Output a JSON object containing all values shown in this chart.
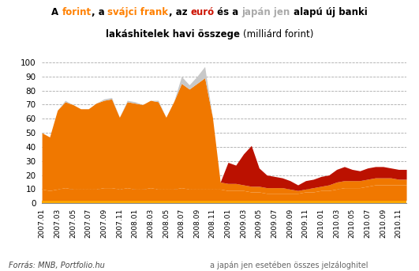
{
  "color_yellow": "#FFAA00",
  "color_orange": "#F07800",
  "color_grey": "#C8C8C8",
  "color_red": "#BB1100",
  "bg_color": "#FFFFFF",
  "fontsize_title": 8.5,
  "fontsize_tick": 7.5,
  "fontsize_footer": 7.0,
  "footer_left": "Forrás: MNB, Portfolio.hu",
  "footer_right": "a japán jen esetében összes jelzáloghitel",
  "ylim": [
    0,
    100
  ],
  "yticks": [
    0,
    10,
    20,
    30,
    40,
    50,
    60,
    70,
    80,
    90,
    100
  ],
  "line1": [
    [
      "A ",
      "#000000",
      true
    ],
    [
      "forint",
      "#FF8000",
      true
    ],
    [
      ", a ",
      "#000000",
      true
    ],
    [
      "svájci frank",
      "#FF8000",
      true
    ],
    [
      ", az ",
      "#000000",
      true
    ],
    [
      "euró",
      "#CC1100",
      true
    ],
    [
      " és a ",
      "#000000",
      true
    ],
    [
      "japán jen",
      "#AAAAAA",
      true
    ],
    [
      " alapú új banki",
      "#000000",
      true
    ]
  ],
  "line2": [
    [
      "lakáshitelek havi összege ",
      "#000000",
      true
    ],
    [
      "(milliárd forint)",
      "#000000",
      false
    ]
  ],
  "forint": [
    2,
    2,
    2,
    2,
    2,
    2,
    2,
    2,
    2,
    2,
    2,
    2,
    2,
    2,
    2,
    2,
    2,
    2,
    2,
    2,
    2,
    2,
    2,
    2,
    2,
    2,
    2,
    2,
    2,
    2,
    2,
    2,
    2,
    2,
    2,
    2,
    2,
    2,
    2,
    2,
    2,
    2,
    2,
    2,
    2,
    2,
    2,
    2
  ],
  "japanjen": [
    8,
    7,
    8,
    9,
    8,
    8,
    8,
    8,
    9,
    9,
    8,
    9,
    8,
    8,
    9,
    8,
    8,
    8,
    9,
    8,
    8,
    8,
    8,
    8,
    7,
    7,
    7,
    6,
    6,
    5,
    5,
    5,
    5,
    5,
    6,
    6,
    7,
    7,
    8,
    9,
    9,
    9,
    10,
    11,
    11,
    11,
    11,
    11
  ],
  "svajci": [
    40,
    38,
    56,
    61,
    60,
    57,
    57,
    61,
    62,
    63,
    51,
    61,
    61,
    60,
    62,
    62,
    51,
    62,
    74,
    71,
    75,
    79,
    51,
    5,
    5,
    5,
    4,
    4,
    4,
    4,
    4,
    4,
    3,
    2,
    2,
    3,
    3,
    4,
    5,
    5,
    5,
    5,
    5,
    5,
    5,
    5,
    4,
    4
  ],
  "grey_cap": [
    0,
    0,
    0,
    1,
    0,
    0,
    0,
    0,
    1,
    1,
    0,
    1,
    1,
    0,
    0,
    1,
    0,
    0,
    5,
    3,
    5,
    8,
    0,
    0,
    0,
    0,
    0,
    0,
    0,
    0,
    0,
    0,
    0,
    0,
    0,
    0,
    0,
    0,
    0,
    0,
    0,
    0,
    0,
    0,
    0,
    0,
    0,
    0
  ],
  "euro": [
    0,
    0,
    0,
    0,
    0,
    0,
    0,
    0,
    0,
    0,
    0,
    0,
    0,
    0,
    0,
    0,
    0,
    0,
    0,
    0,
    0,
    0,
    0,
    0,
    15,
    13,
    22,
    29,
    13,
    9,
    8,
    7,
    6,
    4,
    6,
    6,
    7,
    7,
    9,
    10,
    8,
    7,
    8,
    8,
    8,
    7,
    7,
    7
  ]
}
